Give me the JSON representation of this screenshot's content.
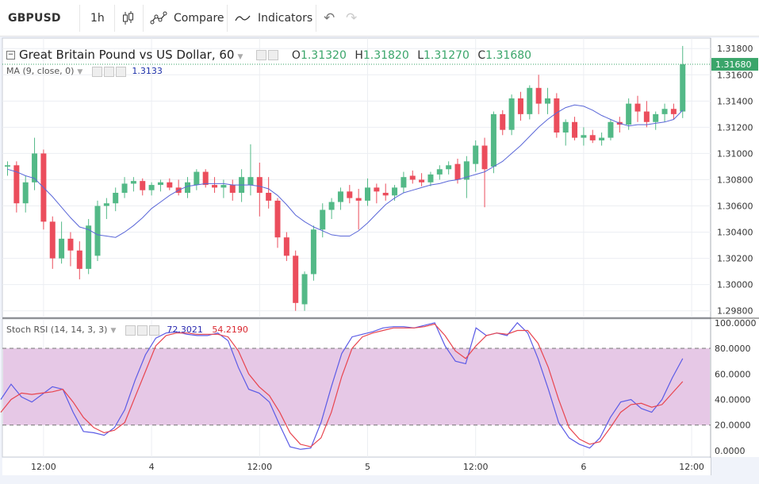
{
  "toolbar": {
    "symbol": "GBPUSD",
    "interval": "1h",
    "compare_label": "Compare",
    "indicators_label": "Indicators",
    "undo_icon": "undo-icon",
    "redo_icon": "redo-icon"
  },
  "legend": {
    "title": "Great Britain Pound vs US Dollar, 60",
    "o_label": "O",
    "o_value": "1.31320",
    "h_label": "H",
    "h_value": "1.31820",
    "l_label": "L",
    "l_value": "1.31270",
    "c_label": "C",
    "c_value": "1.31680",
    "ma_label": "MA (9, close, 0)",
    "ma_value": "1.3133",
    "rsi_label": "Stoch RSI (14, 14, 3, 3)",
    "rsi_k_value": "72.3021",
    "rsi_d_value": "54.2190"
  },
  "colors": {
    "up": "#53b987",
    "down": "#eb4d5c",
    "ma": "#5a67d8",
    "rsi_k": "#5b5be6",
    "rsi_d": "#e8454f",
    "band_fill": "#e6c8e6",
    "last_price_tag": "#3aa56a"
  },
  "chart_data": [
    {
      "type": "candlestick",
      "title": "Great Britain Pound vs US Dollar, 60",
      "ylim": [
        1.2975,
        1.3188
      ],
      "yticks": [
        "1.29800",
        "1.30000",
        "1.30200",
        "1.30400",
        "1.30600",
        "1.30800",
        "1.31000",
        "1.31200",
        "1.31400",
        "1.31600",
        "1.31800"
      ],
      "xticks": [
        {
          "index": 4,
          "label": "12:00"
        },
        {
          "index": 16,
          "label": "4"
        },
        {
          "index": 28,
          "label": "12:00"
        },
        {
          "index": 40,
          "label": "5"
        },
        {
          "index": 52,
          "label": "12:00"
        },
        {
          "index": 64,
          "label": "6"
        },
        {
          "index": 76,
          "label": "12:00"
        }
      ],
      "last_price": "1.31680",
      "candles": [
        [
          1.309,
          1.3094,
          1.3083,
          1.3091
        ],
        [
          1.3091,
          1.3094,
          1.3055,
          1.3062
        ],
        [
          1.3062,
          1.3083,
          1.3055,
          1.3078
        ],
        [
          1.3078,
          1.3112,
          1.3072,
          1.31
        ],
        [
          1.31,
          1.3103,
          1.3042,
          1.3048
        ],
        [
          1.3048,
          1.3052,
          1.3012,
          1.302
        ],
        [
          1.302,
          1.3048,
          1.3016,
          1.3035
        ],
        [
          1.3035,
          1.304,
          1.3014,
          1.3026
        ],
        [
          1.3026,
          1.3033,
          1.3004,
          1.3012
        ],
        [
          1.3012,
          1.305,
          1.3008,
          1.3045
        ],
        [
          1.3022,
          1.3064,
          1.3018,
          1.306
        ],
        [
          1.306,
          1.3066,
          1.305,
          1.3062
        ],
        [
          1.3062,
          1.3074,
          1.3056,
          1.307
        ],
        [
          1.307,
          1.3082,
          1.3066,
          1.3077
        ],
        [
          1.3077,
          1.3082,
          1.3071,
          1.3079
        ],
        [
          1.3079,
          1.3081,
          1.3068,
          1.3072
        ],
        [
          1.3072,
          1.3078,
          1.3068,
          1.3076
        ],
        [
          1.3076,
          1.308,
          1.3071,
          1.3078
        ],
        [
          1.3078,
          1.3081,
          1.3072,
          1.3074
        ],
        [
          1.3074,
          1.308,
          1.3068,
          1.307
        ],
        [
          1.307,
          1.3082,
          1.3066,
          1.3078
        ],
        [
          1.3076,
          1.3088,
          1.3072,
          1.3086
        ],
        [
          1.3086,
          1.3088,
          1.3074,
          1.3076
        ],
        [
          1.3076,
          1.3082,
          1.307,
          1.3074
        ],
        [
          1.3074,
          1.308,
          1.3066,
          1.3076
        ],
        [
          1.3076,
          1.308,
          1.3064,
          1.307
        ],
        [
          1.307,
          1.3088,
          1.3063,
          1.3082
        ],
        [
          1.3076,
          1.3107,
          1.3068,
          1.3082
        ],
        [
          1.3082,
          1.3093,
          1.3052,
          1.307
        ],
        [
          1.307,
          1.3082,
          1.3058,
          1.3064
        ],
        [
          1.3064,
          1.3066,
          1.3028,
          1.3036
        ],
        [
          1.3036,
          1.304,
          1.3018,
          1.3022
        ],
        [
          1.3022,
          1.3026,
          1.298,
          1.2986
        ],
        [
          1.2985,
          1.301,
          1.298,
          1.3008
        ],
        [
          1.3008,
          1.3045,
          1.3003,
          1.3042
        ],
        [
          1.3042,
          1.3062,
          1.3036,
          1.3057
        ],
        [
          1.3057,
          1.3066,
          1.305,
          1.3063
        ],
        [
          1.3063,
          1.3074,
          1.3057,
          1.3071
        ],
        [
          1.3071,
          1.3076,
          1.3062,
          1.3066
        ],
        [
          1.3066,
          1.3073,
          1.3042,
          1.3064
        ],
        [
          1.3064,
          1.3081,
          1.306,
          1.3074
        ],
        [
          1.3074,
          1.3077,
          1.3062,
          1.3071
        ],
        [
          1.307,
          1.3077,
          1.3064,
          1.3068
        ],
        [
          1.3068,
          1.3076,
          1.3064,
          1.3074
        ],
        [
          1.3074,
          1.3086,
          1.307,
          1.3082
        ],
        [
          1.3083,
          1.3087,
          1.3077,
          1.308
        ],
        [
          1.308,
          1.3085,
          1.3075,
          1.3078
        ],
        [
          1.3078,
          1.3086,
          1.3075,
          1.3084
        ],
        [
          1.3084,
          1.3091,
          1.308,
          1.3088
        ],
        [
          1.3088,
          1.3094,
          1.3084,
          1.3091
        ],
        [
          1.3092,
          1.3096,
          1.3077,
          1.308
        ],
        [
          1.308,
          1.3098,
          1.3066,
          1.3094
        ],
        [
          1.3092,
          1.311,
          1.3086,
          1.3106
        ],
        [
          1.3106,
          1.3112,
          1.3059,
          1.3088
        ],
        [
          1.309,
          1.3132,
          1.3085,
          1.313
        ],
        [
          1.313,
          1.3133,
          1.3114,
          1.3118
        ],
        [
          1.3118,
          1.3145,
          1.3114,
          1.3142
        ],
        [
          1.3142,
          1.3147,
          1.3125,
          1.313
        ],
        [
          1.313,
          1.3152,
          1.3126,
          1.315
        ],
        [
          1.315,
          1.316,
          1.313,
          1.3138
        ],
        [
          1.3138,
          1.315,
          1.313,
          1.3142
        ],
        [
          1.3142,
          1.3146,
          1.3112,
          1.3116
        ],
        [
          1.3116,
          1.3126,
          1.3106,
          1.3124
        ],
        [
          1.3124,
          1.3128,
          1.311,
          1.3112
        ],
        [
          1.3112,
          1.312,
          1.3106,
          1.3114
        ],
        [
          1.3114,
          1.3118,
          1.3108,
          1.311
        ],
        [
          1.311,
          1.3116,
          1.3106,
          1.3112
        ],
        [
          1.3112,
          1.3126,
          1.311,
          1.3124
        ],
        [
          1.3124,
          1.3128,
          1.3116,
          1.3122
        ],
        [
          1.3122,
          1.3142,
          1.3118,
          1.3138
        ],
        [
          1.3138,
          1.3144,
          1.3124,
          1.3132
        ],
        [
          1.3132,
          1.314,
          1.312,
          1.3124
        ],
        [
          1.3124,
          1.3132,
          1.3118,
          1.313
        ],
        [
          1.313,
          1.3138,
          1.3124,
          1.3134
        ],
        [
          1.3134,
          1.3138,
          1.3126,
          1.313
        ],
        [
          1.3132,
          1.3182,
          1.3127,
          1.3168
        ]
      ],
      "ma_values": [
        1.3088,
        1.3086,
        1.3083,
        1.3081,
        1.3074,
        1.3067,
        1.3059,
        1.3051,
        1.3044,
        1.3042,
        1.3038,
        1.3037,
        1.3036,
        1.304,
        1.3045,
        1.3051,
        1.3058,
        1.3063,
        1.3068,
        1.3072,
        1.3075,
        1.3076,
        1.3077,
        1.3077,
        1.3077,
        1.3076,
        1.3076,
        1.3076,
        1.3075,
        1.3073,
        1.3068,
        1.3061,
        1.3053,
        1.3048,
        1.3044,
        1.3041,
        1.3038,
        1.3037,
        1.3037,
        1.3041,
        1.3047,
        1.3054,
        1.3061,
        1.3066,
        1.307,
        1.3072,
        1.3074,
        1.3076,
        1.3077,
        1.3079,
        1.308,
        1.3082,
        1.3084,
        1.3086,
        1.309,
        1.3094,
        1.31,
        1.3106,
        1.3113,
        1.312,
        1.3126,
        1.3131,
        1.3135,
        1.3137,
        1.3136,
        1.3133,
        1.3129,
        1.3126,
        1.3123,
        1.3121,
        1.3122,
        1.3122,
        1.3123,
        1.3124,
        1.3126,
        1.3133
      ]
    },
    {
      "type": "line",
      "title": "Stoch RSI (14, 14, 3, 3)",
      "ylim": [
        -5,
        103
      ],
      "yticks": [
        "0.0000",
        "20.0000",
        "40.0000",
        "60.0000",
        "80.0000",
        "100.0000"
      ],
      "band": [
        20,
        80
      ],
      "series": [
        {
          "name": "K",
          "values": [
            40,
            52,
            42,
            38,
            44,
            50,
            48,
            30,
            15,
            14,
            12,
            18,
            32,
            55,
            75,
            88,
            92,
            93,
            91,
            90,
            90,
            92,
            86,
            65,
            48,
            45,
            38,
            20,
            3,
            1,
            2,
            22,
            50,
            76,
            89,
            91,
            93,
            96,
            97,
            97,
            96,
            98,
            100,
            82,
            70,
            68,
            96,
            90,
            92,
            90,
            100,
            92,
            72,
            48,
            22,
            10,
            5,
            2,
            10,
            26,
            38,
            40,
            33,
            30,
            40,
            57,
            72
          ]
        },
        {
          "name": "D",
          "values": [
            30,
            40,
            45,
            44,
            45,
            46,
            48,
            38,
            26,
            18,
            14,
            16,
            22,
            42,
            62,
            82,
            90,
            92,
            92,
            91,
            91,
            91,
            89,
            78,
            60,
            50,
            43,
            30,
            14,
            5,
            3,
            10,
            30,
            58,
            80,
            89,
            92,
            94,
            96,
            96,
            96,
            97,
            99,
            90,
            78,
            72,
            82,
            90,
            92,
            91,
            94,
            94,
            84,
            65,
            40,
            18,
            9,
            5,
            7,
            18,
            30,
            36,
            37,
            34,
            36,
            45,
            54
          ]
        }
      ]
    }
  ]
}
